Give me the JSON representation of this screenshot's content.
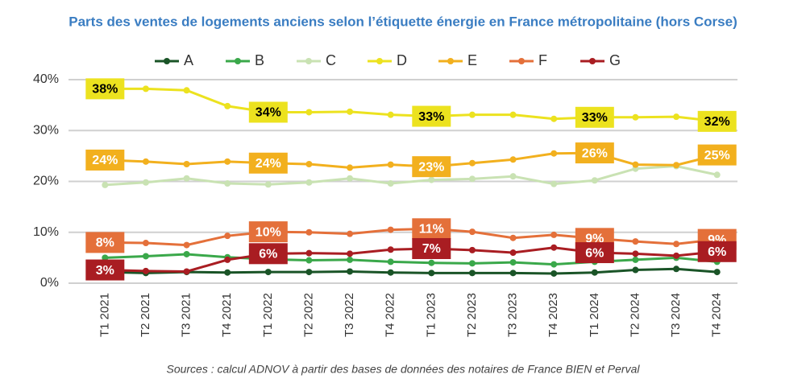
{
  "chart_data": {
    "type": "line",
    "title": "Parts des ventes de logements anciens selon l’étiquette énergie en France métropolitaine (hors Corse)",
    "source": "Sources : calcul ADNOV à partir des bases de données des notaires de France BIEN et Perval",
    "categories": [
      "T1 2021",
      "T2 2021",
      "T3 2021",
      "T4 2021",
      "T1 2022",
      "T2 2022",
      "T3 2022",
      "T4 2022",
      "T1 2023",
      "T2 2023",
      "T3 2023",
      "T4 2023",
      "T1 2024",
      "T2 2024",
      "T3 2024",
      "T4 2024"
    ],
    "ylim": [
      0,
      40
    ],
    "yticks": [
      {
        "value": 0,
        "label": "0%"
      },
      {
        "value": 10,
        "label": "10%"
      },
      {
        "value": 20,
        "label": "20%"
      },
      {
        "value": 30,
        "label": "30%"
      },
      {
        "value": 40,
        "label": "40%"
      }
    ],
    "grid": true,
    "series": [
      {
        "name": "A",
        "color": "#1a5427",
        "values": [
          2.2,
          2.0,
          2.2,
          2.1,
          2.2,
          2.2,
          2.3,
          2.1,
          2.0,
          2.0,
          2.0,
          1.9,
          2.1,
          2.6,
          2.8,
          2.2
        ]
      },
      {
        "name": "B",
        "color": "#3aa84a",
        "values": [
          5.0,
          5.3,
          5.7,
          5.1,
          4.7,
          4.5,
          4.6,
          4.2,
          4.0,
          3.9,
          4.1,
          3.7,
          4.2,
          4.6,
          5.0,
          4.2
        ]
      },
      {
        "name": "C",
        "color": "#c9e2b3",
        "values": [
          19.3,
          19.8,
          20.6,
          19.6,
          19.4,
          19.8,
          20.6,
          19.6,
          20.3,
          20.5,
          21.0,
          19.5,
          20.2,
          22.5,
          23.0,
          21.3
        ]
      },
      {
        "name": "D",
        "color": "#ece21f",
        "label_text": "#000000",
        "values": [
          38.2,
          38.2,
          37.9,
          34.8,
          33.6,
          33.6,
          33.7,
          33.1,
          32.8,
          33.1,
          33.1,
          32.3,
          32.6,
          32.6,
          32.7,
          31.8
        ],
        "value_labels": [
          "38%",
          null,
          null,
          null,
          "34%",
          null,
          null,
          null,
          "33%",
          null,
          null,
          null,
          "33%",
          null,
          null,
          "32%"
        ]
      },
      {
        "name": "E",
        "color": "#f2b01e",
        "label_text": "#ffffff",
        "values": [
          24.2,
          23.9,
          23.4,
          23.9,
          23.6,
          23.4,
          22.7,
          23.3,
          22.9,
          23.6,
          24.3,
          25.5,
          25.6,
          23.3,
          23.2,
          25.2
        ],
        "value_labels": [
          "24%",
          null,
          null,
          null,
          "24%",
          null,
          null,
          null,
          "23%",
          null,
          null,
          null,
          "26%",
          null,
          null,
          "25%"
        ]
      },
      {
        "name": "F",
        "color": "#e4703a",
        "label_text": "#ffffff",
        "values": [
          8.0,
          7.9,
          7.5,
          9.3,
          10.1,
          10.0,
          9.7,
          10.5,
          10.7,
          10.1,
          8.9,
          9.5,
          8.8,
          8.2,
          7.7,
          8.6
        ],
        "value_labels": [
          "8%",
          null,
          null,
          null,
          "10%",
          null,
          null,
          null,
          "11%",
          null,
          null,
          null,
          "9%",
          null,
          null,
          "9%"
        ]
      },
      {
        "name": "G",
        "color": "#a91d22",
        "label_text": "#ffffff",
        "values": [
          2.6,
          2.4,
          2.3,
          4.6,
          5.8,
          5.9,
          5.8,
          6.6,
          6.8,
          6.5,
          6.0,
          7.0,
          6.0,
          5.8,
          5.4,
          6.2
        ],
        "value_labels": [
          "3%",
          null,
          null,
          null,
          "6%",
          null,
          null,
          null,
          "7%",
          null,
          null,
          null,
          "6%",
          null,
          null,
          "6%"
        ]
      }
    ]
  }
}
